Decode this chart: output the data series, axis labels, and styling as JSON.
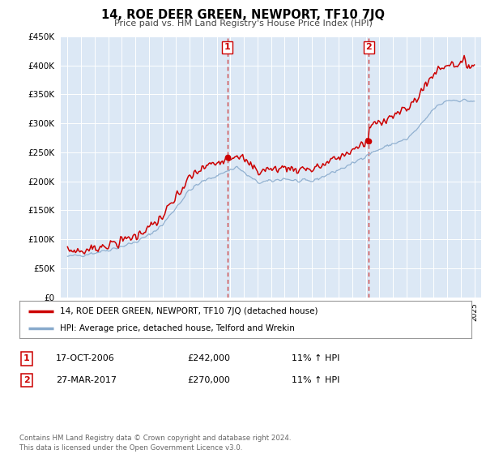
{
  "title": "14, ROE DEER GREEN, NEWPORT, TF10 7JQ",
  "subtitle": "Price paid vs. HM Land Registry's House Price Index (HPI)",
  "legend_line1": "14, ROE DEER GREEN, NEWPORT, TF10 7JQ (detached house)",
  "legend_line2": "HPI: Average price, detached house, Telford and Wrekin",
  "footnote": "Contains HM Land Registry data © Crown copyright and database right 2024.\nThis data is licensed under the Open Government Licence v3.0.",
  "table_rows": [
    {
      "num": "1",
      "date": "17-OCT-2006",
      "price": "£242,000",
      "hpi": "11% ↑ HPI"
    },
    {
      "num": "2",
      "date": "27-MAR-2017",
      "price": "£270,000",
      "hpi": "11% ↑ HPI"
    }
  ],
  "sale1_year": 2006.79,
  "sale2_year": 2017.21,
  "sale1_price": 242000,
  "sale2_price": 270000,
  "red_color": "#cc0000",
  "blue_color": "#88aacc",
  "vline_color": "#cc3333",
  "bg_plot": "#dce8f5",
  "bg_fig": "#ffffff",
  "ylim_min": 0,
  "ylim_max": 450000,
  "xlim_min": 1994.5,
  "xlim_max": 2025.5,
  "ytick_step": 50000,
  "grid_color": "#ffffff"
}
